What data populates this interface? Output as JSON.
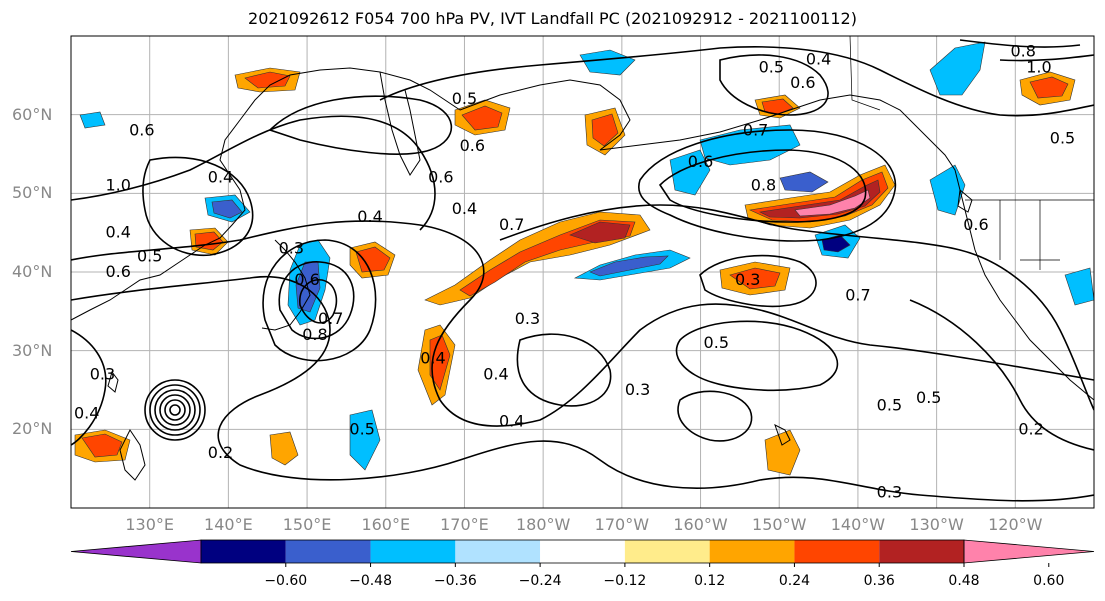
{
  "title": "2021092612 F054 700 hPa PV, IVT Landfall PC (2021092912 - 2021100112)",
  "lat_labels": [
    "60°N",
    "50°N",
    "40°N",
    "30°N",
    "20°N"
  ],
  "lon_labels": [
    "130°E",
    "140°E",
    "150°E",
    "160°E",
    "170°E",
    "180°W",
    "170°W",
    "160°W",
    "150°W",
    "140°W",
    "130°W",
    "120°W"
  ],
  "colorbar": {
    "colors": [
      "#9933cc",
      "#000080",
      "#3a5fcd",
      "#00bfff",
      "#b0e2ff",
      "#ffffff",
      "#ffec8b",
      "#ffa500",
      "#ff4500",
      "#b22222",
      "#ff82ab"
    ],
    "tick_labels": [
      "−0.60",
      "−0.48",
      "−0.36",
      "−0.24",
      "−0.12",
      "0.12",
      "0.24",
      "0.36",
      "0.48",
      "0.60"
    ]
  },
  "contour_labels": [
    {
      "text": "0.4",
      "lon": 170,
      "lat": 48
    },
    {
      "text": "0.6",
      "lon": 167,
      "lat": 52
    },
    {
      "text": "0.5",
      "lon": 170,
      "lat": 62
    },
    {
      "text": "0.6",
      "lon": 171,
      "lat": 56
    },
    {
      "text": "0.3",
      "lon": -154,
      "lat": 39
    },
    {
      "text": "0.7",
      "lon": -140,
      "lat": 37
    },
    {
      "text": "0.5",
      "lon": -158,
      "lat": 31
    },
    {
      "text": "0.5",
      "lon": -131,
      "lat": 24
    },
    {
      "text": "0.5",
      "lon": -136,
      "lat": 23
    },
    {
      "text": "0.3",
      "lon": -136,
      "lat": 12
    },
    {
      "text": "0.7",
      "lon": 176,
      "lat": 46
    },
    {
      "text": "0.7",
      "lon": -153,
      "lat": 58
    },
    {
      "text": "0.8",
      "lon": -152,
      "lat": 51
    },
    {
      "text": "0.6",
      "lon": -160,
      "lat": 54
    },
    {
      "text": "0.4",
      "lon": -145,
      "lat": 67
    },
    {
      "text": "0.5",
      "lon": -151,
      "lat": 66
    },
    {
      "text": "0.6",
      "lon": -147,
      "lat": 64
    },
    {
      "text": "0.8",
      "lon": -119,
      "lat": 68
    },
    {
      "text": "1.0",
      "lon": -117,
      "lat": 66
    },
    {
      "text": "0.5",
      "lon": -114,
      "lat": 57
    },
    {
      "text": "0.6",
      "lon": -125,
      "lat": 46
    },
    {
      "text": "0.6",
      "lon": 129,
      "lat": 58
    },
    {
      "text": "0.4",
      "lon": 139,
      "lat": 52
    },
    {
      "text": "1.0",
      "lon": 126,
      "lat": 51
    },
    {
      "text": "0.4",
      "lon": 126,
      "lat": 45
    },
    {
      "text": "0.5",
      "lon": 130,
      "lat": 42
    },
    {
      "text": "0.6",
      "lon": 126,
      "lat": 40
    },
    {
      "text": "0.4",
      "lon": 158,
      "lat": 47
    },
    {
      "text": "0.3",
      "lon": 148,
      "lat": 43
    },
    {
      "text": "0.6",
      "lon": 150,
      "lat": 39
    },
    {
      "text": "0.8",
      "lon": 151,
      "lat": 32
    },
    {
      "text": "0.7",
      "lon": 153,
      "lat": 34
    },
    {
      "text": "0.4",
      "lon": 166,
      "lat": 29
    },
    {
      "text": "0.4",
      "lon": 174,
      "lat": 27
    },
    {
      "text": "0.3",
      "lon": 178,
      "lat": 34
    },
    {
      "text": "0.3",
      "lon": -168,
      "lat": 25
    },
    {
      "text": "0.4",
      "lon": 176,
      "lat": 21
    },
    {
      "text": "0.5",
      "lon": 157,
      "lat": 20
    },
    {
      "text": "0.2",
      "lon": 139,
      "lat": 17
    },
    {
      "text": "0.4",
      "lon": 122,
      "lat": 22
    },
    {
      "text": "0.3",
      "lon": 124,
      "lat": 27
    },
    {
      "text": "0.2",
      "lon": -118,
      "lat": 20
    }
  ]
}
